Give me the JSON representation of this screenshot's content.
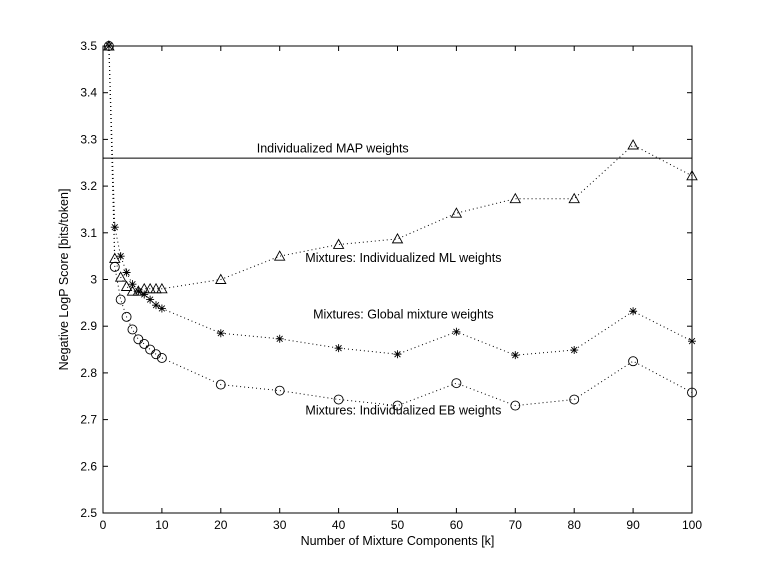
{
  "chart_data": {
    "type": "line",
    "title": "",
    "xlabel": "Number of Mixture Components [k]",
    "ylabel": "Negative LogP Score [bits/token]",
    "xlim": [
      0,
      100
    ],
    "ylim": [
      2.5,
      3.5
    ],
    "xticks": [
      0,
      10,
      20,
      30,
      40,
      50,
      60,
      70,
      80,
      90,
      100
    ],
    "yticks": [
      2.5,
      2.6,
      2.7,
      2.8,
      2.9,
      3.0,
      3.1,
      3.2,
      3.3,
      3.4,
      3.5
    ],
    "xtick_labels": [
      "0",
      "10",
      "20",
      "30",
      "40",
      "50",
      "60",
      "70",
      "80",
      "90",
      "100"
    ],
    "ytick_labels": [
      "2.5",
      "2.6",
      "2.7",
      "2.8",
      "2.9",
      "3",
      "3.1",
      "3.2",
      "3.3",
      "3.4",
      "3.5"
    ],
    "grid": false,
    "legend": "none",
    "reference_line": {
      "label": "Individualized MAP weights",
      "y": 3.26
    },
    "series": [
      {
        "name": "Mixtures: Individualized ML weights",
        "marker": "triangle",
        "x": [
          1,
          2,
          3,
          4,
          5,
          6,
          7,
          8,
          9,
          10,
          20,
          30,
          40,
          50,
          60,
          70,
          80,
          90,
          100
        ],
        "y": [
          3.5,
          3.045,
          3.005,
          2.985,
          2.975,
          2.975,
          2.98,
          2.98,
          2.98,
          2.98,
          3.0,
          3.05,
          3.075,
          3.087,
          3.142,
          3.173,
          3.173,
          3.288,
          3.222
        ]
      },
      {
        "name": "Mixtures: Global mixture weights",
        "marker": "asterisk",
        "x": [
          1,
          2,
          3,
          4,
          5,
          6,
          7,
          8,
          9,
          10,
          20,
          30,
          40,
          50,
          60,
          70,
          80,
          90,
          100
        ],
        "y": [
          3.5,
          3.112,
          3.05,
          3.015,
          2.99,
          2.975,
          2.968,
          2.957,
          2.945,
          2.938,
          2.885,
          2.873,
          2.853,
          2.84,
          2.888,
          2.838,
          2.849,
          2.932,
          2.868
        ]
      },
      {
        "name": "Mixtures: Individualized EB weights",
        "marker": "circle",
        "x": [
          1,
          2,
          3,
          4,
          5,
          6,
          7,
          8,
          9,
          10,
          20,
          30,
          40,
          50,
          60,
          70,
          80,
          90,
          100
        ],
        "y": [
          3.5,
          3.027,
          2.957,
          2.92,
          2.893,
          2.872,
          2.862,
          2.85,
          2.84,
          2.832,
          2.775,
          2.762,
          2.743,
          2.73,
          2.778,
          2.73,
          2.743,
          2.825,
          2.758
        ]
      }
    ],
    "annotations": [
      {
        "text": "Individualized MAP weights",
        "x": 39,
        "y": 3.272
      },
      {
        "text": "Mixtures: Individualized ML weights",
        "x": 51,
        "y": 3.037
      },
      {
        "text": "Mixtures: Global mixture weights",
        "x": 51,
        "y": 2.916
      },
      {
        "text": "Mixtures: Individualized EB weights",
        "x": 51,
        "y": 2.711
      }
    ]
  }
}
